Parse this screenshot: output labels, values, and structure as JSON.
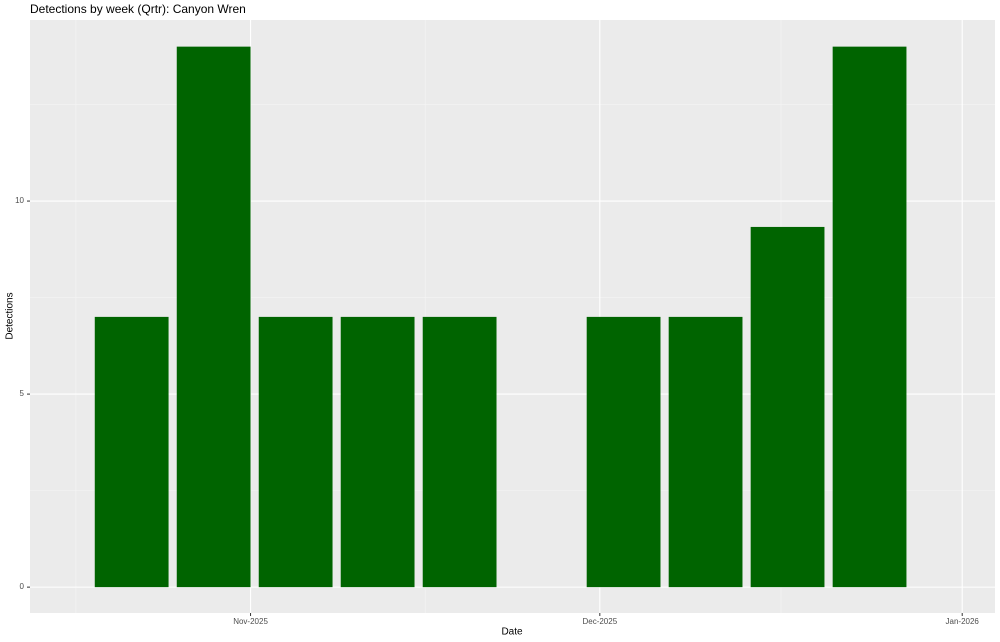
{
  "chart_data": {
    "type": "bar",
    "title": "Detections by week (Qrtr): Canyon Wren",
    "x_label": "Date",
    "y_label": "Detections",
    "categories": [
      null,
      null,
      null,
      null,
      null,
      null,
      null,
      null,
      null,
      null
    ],
    "values": [
      7,
      14,
      7,
      7,
      7,
      null,
      7,
      7,
      9.33,
      14
    ],
    "color": "#006400",
    "xlim": [
      -1.24,
      10.53
    ],
    "xticks": [
      {
        "value": 1.45,
        "label": "Nov-2025"
      },
      {
        "value": 5.71,
        "label": "Dec-2025"
      },
      {
        "value": 10.13,
        "label": "Jan-2026"
      }
    ],
    "ylim": [
      -0.67,
      14.69
    ],
    "yticks": [
      0,
      5,
      10
    ],
    "grid": true
  }
}
